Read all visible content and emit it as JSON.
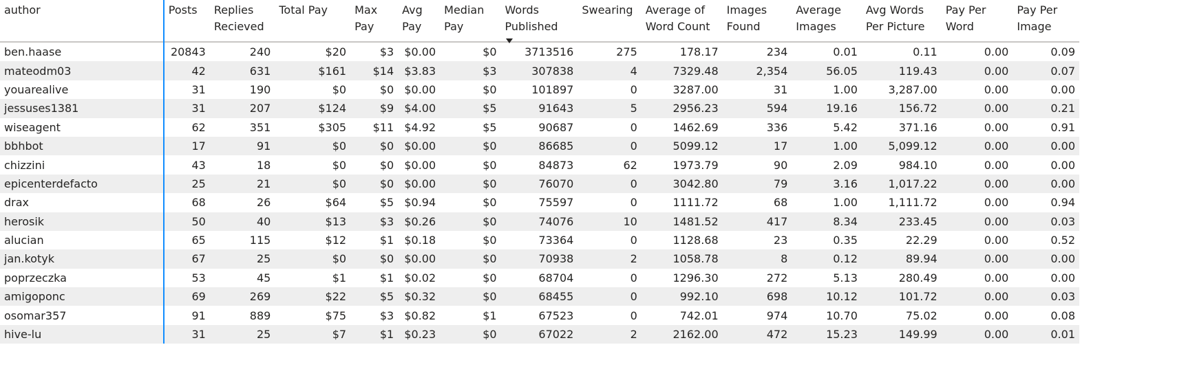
{
  "columns": [
    {
      "key": "author",
      "label": "author"
    },
    {
      "key": "posts",
      "label": "Posts"
    },
    {
      "key": "replies",
      "label": "Replies Recieved"
    },
    {
      "key": "total_pay",
      "label": "Total Pay"
    },
    {
      "key": "max_pay",
      "label": "Max Pay"
    },
    {
      "key": "avg_pay",
      "label": "Avg Pay"
    },
    {
      "key": "median_pay",
      "label": "Median Pay"
    },
    {
      "key": "words",
      "label": "Words Published"
    },
    {
      "key": "swearing",
      "label": "Swearing"
    },
    {
      "key": "avg_word_count",
      "label": "Average of Word Count"
    },
    {
      "key": "images_found",
      "label": "Images Found"
    },
    {
      "key": "avg_images",
      "label": "Average Images"
    },
    {
      "key": "avg_words_pic",
      "label": "Avg Words Per Picture"
    },
    {
      "key": "pay_per_word",
      "label": "Pay Per Word"
    },
    {
      "key": "pay_per_image",
      "label": "Pay Per Image"
    }
  ],
  "sort": {
    "column": "words",
    "direction": "descending",
    "icon": "sort-descending-icon"
  },
  "rows": [
    [
      "ben.haase",
      "20843",
      "240",
      "$20",
      "$3",
      "$0.00",
      "$0",
      "3713516",
      "275",
      "178.17",
      "234",
      "0.01",
      "0.11",
      "0.00",
      "0.09"
    ],
    [
      "mateodm03",
      "42",
      "631",
      "$161",
      "$14",
      "$3.83",
      "$3",
      "307838",
      "4",
      "7329.48",
      "2,354",
      "56.05",
      "119.43",
      "0.00",
      "0.07"
    ],
    [
      "youarealive",
      "31",
      "190",
      "$0",
      "$0",
      "$0.00",
      "$0",
      "101897",
      "0",
      "3287.00",
      "31",
      "1.00",
      "3,287.00",
      "0.00",
      "0.00"
    ],
    [
      "jessuses1381",
      "31",
      "207",
      "$124",
      "$9",
      "$4.00",
      "$5",
      "91643",
      "5",
      "2956.23",
      "594",
      "19.16",
      "156.72",
      "0.00",
      "0.21"
    ],
    [
      "wiseagent",
      "62",
      "351",
      "$305",
      "$11",
      "$4.92",
      "$5",
      "90687",
      "0",
      "1462.69",
      "336",
      "5.42",
      "371.16",
      "0.00",
      "0.91"
    ],
    [
      "bbhbot",
      "17",
      "91",
      "$0",
      "$0",
      "$0.00",
      "$0",
      "86685",
      "0",
      "5099.12",
      "17",
      "1.00",
      "5,099.12",
      "0.00",
      "0.00"
    ],
    [
      "chizzini",
      "43",
      "18",
      "$0",
      "$0",
      "$0.00",
      "$0",
      "84873",
      "62",
      "1973.79",
      "90",
      "2.09",
      "984.10",
      "0.00",
      "0.00"
    ],
    [
      "epicenterdefacto",
      "25",
      "21",
      "$0",
      "$0",
      "$0.00",
      "$0",
      "76070",
      "0",
      "3042.80",
      "79",
      "3.16",
      "1,017.22",
      "0.00",
      "0.00"
    ],
    [
      "drax",
      "68",
      "26",
      "$64",
      "$5",
      "$0.94",
      "$0",
      "75597",
      "0",
      "1111.72",
      "68",
      "1.00",
      "1,111.72",
      "0.00",
      "0.94"
    ],
    [
      "herosik",
      "50",
      "40",
      "$13",
      "$3",
      "$0.26",
      "$0",
      "74076",
      "10",
      "1481.52",
      "417",
      "8.34",
      "233.45",
      "0.00",
      "0.03"
    ],
    [
      "alucian",
      "65",
      "115",
      "$12",
      "$1",
      "$0.18",
      "$0",
      "73364",
      "0",
      "1128.68",
      "23",
      "0.35",
      "22.29",
      "0.00",
      "0.52"
    ],
    [
      "jan.kotyk",
      "67",
      "25",
      "$0",
      "$0",
      "$0.00",
      "$0",
      "70938",
      "2",
      "1058.78",
      "8",
      "0.12",
      "89.94",
      "0.00",
      "0.00"
    ],
    [
      "poprzeczka",
      "53",
      "45",
      "$1",
      "$1",
      "$0.02",
      "$0",
      "68704",
      "0",
      "1296.30",
      "272",
      "5.13",
      "280.49",
      "0.00",
      "0.00"
    ],
    [
      "amigoponc",
      "69",
      "269",
      "$22",
      "$5",
      "$0.32",
      "$0",
      "68455",
      "0",
      "992.10",
      "698",
      "10.12",
      "101.72",
      "0.00",
      "0.03"
    ],
    [
      "osomar357",
      "91",
      "889",
      "$75",
      "$3",
      "$0.82",
      "$1",
      "67523",
      "0",
      "742.01",
      "974",
      "10.70",
      "75.02",
      "0.00",
      "0.08"
    ],
    [
      "hive-lu",
      "31",
      "25",
      "$7",
      "$1",
      "$0.23",
      "$0",
      "67022",
      "2",
      "2162.00",
      "472",
      "15.23",
      "149.99",
      "0.00",
      "0.01"
    ]
  ],
  "colors": {
    "accent_border": "#118dff",
    "row_stripe": "#eeeeee",
    "text": "#252423"
  }
}
